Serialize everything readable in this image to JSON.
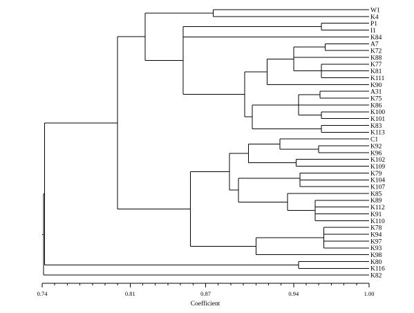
{
  "chart_data": {
    "type": "dendrogram",
    "xlabel": "Coefficient",
    "xlim": [
      0.74,
      1.0
    ],
    "ticks": [
      "0.74",
      "0.81",
      "0.87",
      "0.94",
      "1.00"
    ],
    "tick_values": [
      0.74,
      0.81,
      0.87,
      0.94,
      1.0
    ],
    "leaves": [
      "W1",
      "K4",
      "P1",
      "I1",
      "K84",
      "A7",
      "K72",
      "K88",
      "K77",
      "K81",
      "K111",
      "K90",
      "A31",
      "K75",
      "K86",
      "K100",
      "K101",
      "K83",
      "K113",
      "C1",
      "K92",
      "K96",
      "K102",
      "K109",
      "K79",
      "K104",
      "K107",
      "K85",
      "K89",
      "K112",
      "K91",
      "K110",
      "K78",
      "K94",
      "K97",
      "K93",
      "K98",
      "K80",
      "K116",
      "K82"
    ],
    "merges": [
      {
        "a": "W1",
        "b": "K4",
        "height": 0.876
      },
      {
        "a": "P1",
        "b": "I1",
        "height": 0.962
      },
      {
        "a": "A7",
        "b": "K72",
        "height": 0.965
      },
      {
        "a": "K81",
        "b": "K111",
        "height": 0.962
      },
      {
        "a": "A31",
        "b": "K75",
        "height": 0.961
      },
      {
        "a": "K100",
        "b": "K101",
        "height": 0.962
      },
      {
        "a": "K83",
        "b": "K113",
        "height": 0.962
      },
      {
        "a": "K92",
        "b": "K96",
        "height": 0.96
      },
      {
        "a": "K79",
        "b": "K104",
        "height": 0.945
      },
      {
        "a": "K112",
        "b": "K91",
        "height": 0.957
      },
      {
        "a": "K78",
        "b": "K94",
        "height": 0.964
      },
      {
        "a": "K80",
        "b": "K116",
        "height": 0.944
      }
    ]
  }
}
